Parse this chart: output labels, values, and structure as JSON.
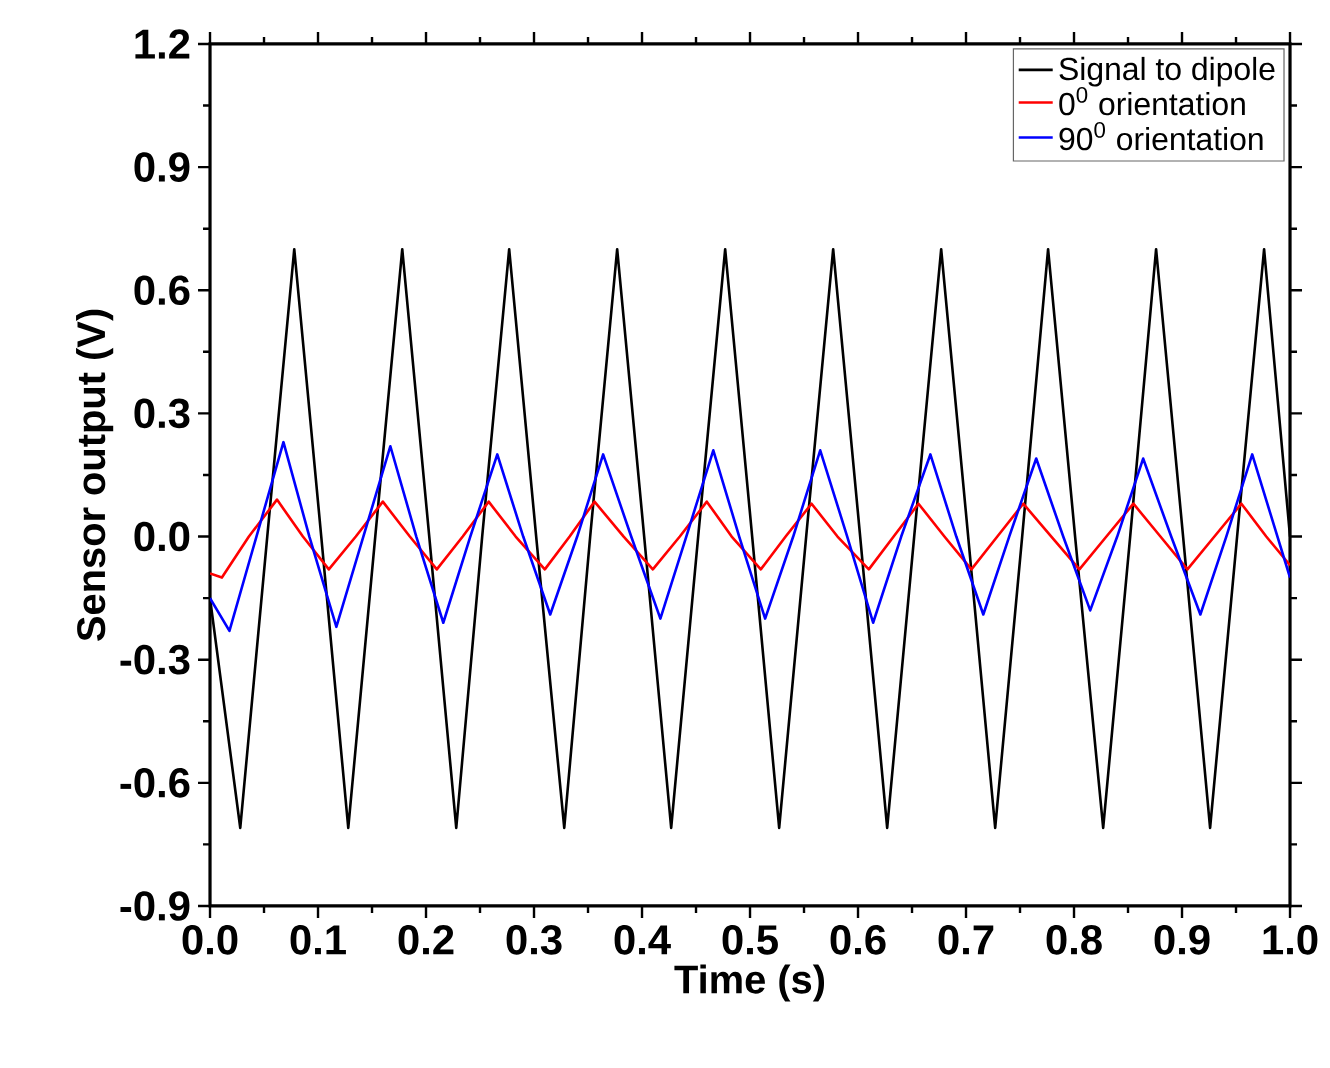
{
  "chart_data": {
    "type": "line",
    "xlabel": "Time (s)",
    "ylabel": "Sensor output (V)",
    "xlim": [
      0,
      1
    ],
    "ylim": [
      -0.9,
      1.2
    ],
    "xticks": [
      {
        "value": 0,
        "label": "0.0"
      },
      {
        "value": 0.1,
        "label": "0.1"
      },
      {
        "value": 0.2,
        "label": "0.2"
      },
      {
        "value": 0.3,
        "label": "0.3"
      },
      {
        "value": 0.4,
        "label": "0.4"
      },
      {
        "value": 0.5,
        "label": "0.5"
      },
      {
        "value": 0.6,
        "label": "0.6"
      },
      {
        "value": 0.7,
        "label": "0.7"
      },
      {
        "value": 0.8,
        "label": "0.8"
      },
      {
        "value": 0.9,
        "label": "0.9"
      },
      {
        "value": 1,
        "label": "1.0"
      }
    ],
    "yticks": [
      {
        "value": -0.9,
        "label": "-0.9"
      },
      {
        "value": -0.6,
        "label": "-0.6"
      },
      {
        "value": -0.3,
        "label": "-0.3"
      },
      {
        "value": 0,
        "label": "0.0"
      },
      {
        "value": 0.3,
        "label": "0.3"
      },
      {
        "value": 0.6,
        "label": "0.6"
      },
      {
        "value": 0.9,
        "label": "0.9"
      },
      {
        "value": 1.2,
        "label": "1.2"
      }
    ],
    "legend": "top right",
    "marker": "none",
    "line_style": "solid",
    "series": [
      {
        "name": "Signal to dipole",
        "color": "#000000",
        "x": [
          0,
          0.028,
          0.053,
          0.078,
          0.103,
          0.128,
          0.153,
          0.178,
          0.203,
          0.228,
          0.252,
          0.277,
          0.302,
          0.328,
          0.352,
          0.377,
          0.402,
          0.427,
          0.452,
          0.477,
          0.502,
          0.527,
          0.552,
          0.577,
          0.602,
          0.627,
          0.652,
          0.677,
          0.702,
          0.727,
          0.752,
          0.776,
          0.801,
          0.827,
          0.852,
          0.876,
          0.901,
          0.926,
          0.951,
          0.976,
          1.0
        ],
        "values": [
          -0.15,
          -0.71,
          0,
          0.7,
          0,
          -0.71,
          0,
          0.7,
          0,
          -0.71,
          0,
          0.7,
          0,
          -0.71,
          0,
          0.7,
          0,
          -0.71,
          0,
          0.7,
          0,
          -0.71,
          0,
          0.7,
          0,
          -0.71,
          0,
          0.7,
          0,
          -0.71,
          0,
          0.7,
          0,
          -0.71,
          0,
          0.7,
          0,
          -0.71,
          0,
          0.7,
          0.0
        ]
      },
      {
        "name": "0$^{0}$ orientation",
        "color": "#ff0000",
        "x": [
          0,
          0.011,
          0.036,
          0.062,
          0.086,
          0.11,
          0.135,
          0.16,
          0.185,
          0.21,
          0.234,
          0.258,
          0.283,
          0.31,
          0.333,
          0.356,
          0.383,
          0.41,
          0.435,
          0.46,
          0.483,
          0.51,
          0.533,
          0.557,
          0.581,
          0.61,
          0.633,
          0.656,
          0.68,
          0.705,
          0.729,
          0.753,
          0.779,
          0.805,
          0.83,
          0.855,
          0.88,
          0.905,
          0.93,
          0.955,
          0.978,
          1.0
        ],
        "values": [
          -0.09,
          -0.1,
          0,
          0.09,
          0,
          -0.08,
          0,
          0.085,
          0,
          -0.08,
          0,
          0.085,
          0,
          -0.08,
          0,
          0.085,
          0,
          -0.08,
          0,
          0.085,
          0,
          -0.08,
          0,
          0.08,
          0,
          -0.08,
          0,
          0.08,
          0,
          -0.08,
          0,
          0.08,
          0,
          -0.08,
          0,
          0.08,
          0,
          -0.08,
          0,
          0.08,
          0,
          -0.07
        ]
      },
      {
        "name": "90$^{0}$ orientation",
        "color": "#0000ff",
        "x": [
          0,
          0.018,
          0.043,
          0.068,
          0.092,
          0.117,
          0.142,
          0.167,
          0.191,
          0.216,
          0.241,
          0.266,
          0.29,
          0.315,
          0.34,
          0.364,
          0.39,
          0.417,
          0.441,
          0.466,
          0.49,
          0.514,
          0.54,
          0.565,
          0.59,
          0.614,
          0.64,
          0.667,
          0.691,
          0.716,
          0.74,
          0.765,
          0.79,
          0.815,
          0.84,
          0.864,
          0.89,
          0.917,
          0.941,
          0.965,
          1.0
        ],
        "values": [
          -0.15,
          -0.23,
          0,
          0.23,
          0,
          -0.22,
          0,
          0.22,
          0,
          -0.21,
          0,
          0.2,
          0,
          -0.19,
          0,
          0.2,
          0,
          -0.2,
          0,
          0.21,
          0,
          -0.2,
          0,
          0.21,
          0,
          -0.21,
          0,
          0.2,
          0,
          -0.19,
          0,
          0.19,
          0,
          -0.18,
          0,
          0.19,
          0,
          -0.19,
          0,
          0.2,
          -0.1
        ]
      }
    ]
  }
}
